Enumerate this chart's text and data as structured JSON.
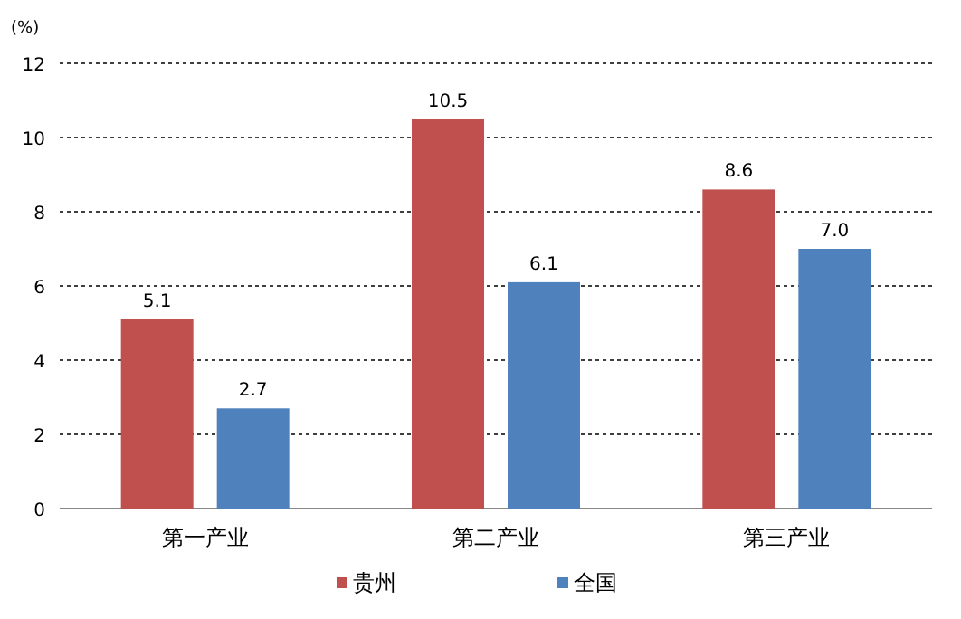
{
  "chart_data": {
    "type": "bar",
    "ylabel": "(%)",
    "categories": [
      "第一产业",
      "第二产业",
      "第三产业"
    ],
    "series": [
      {
        "name": "贵州",
        "color": "#c0504d",
        "values": [
          5.1,
          10.5,
          8.6
        ],
        "value_labels": [
          "5.1",
          "10.5",
          "8.6"
        ]
      },
      {
        "name": "全国",
        "color": "#4f81bd",
        "values": [
          2.7,
          6.1,
          7.0
        ],
        "value_labels": [
          "2.7",
          "6.1",
          "7.0"
        ]
      }
    ],
    "ylim": [
      0,
      12
    ],
    "yticks": [
      0,
      2,
      4,
      6,
      8,
      10,
      12
    ],
    "grid": "y",
    "legend": "bottom"
  }
}
